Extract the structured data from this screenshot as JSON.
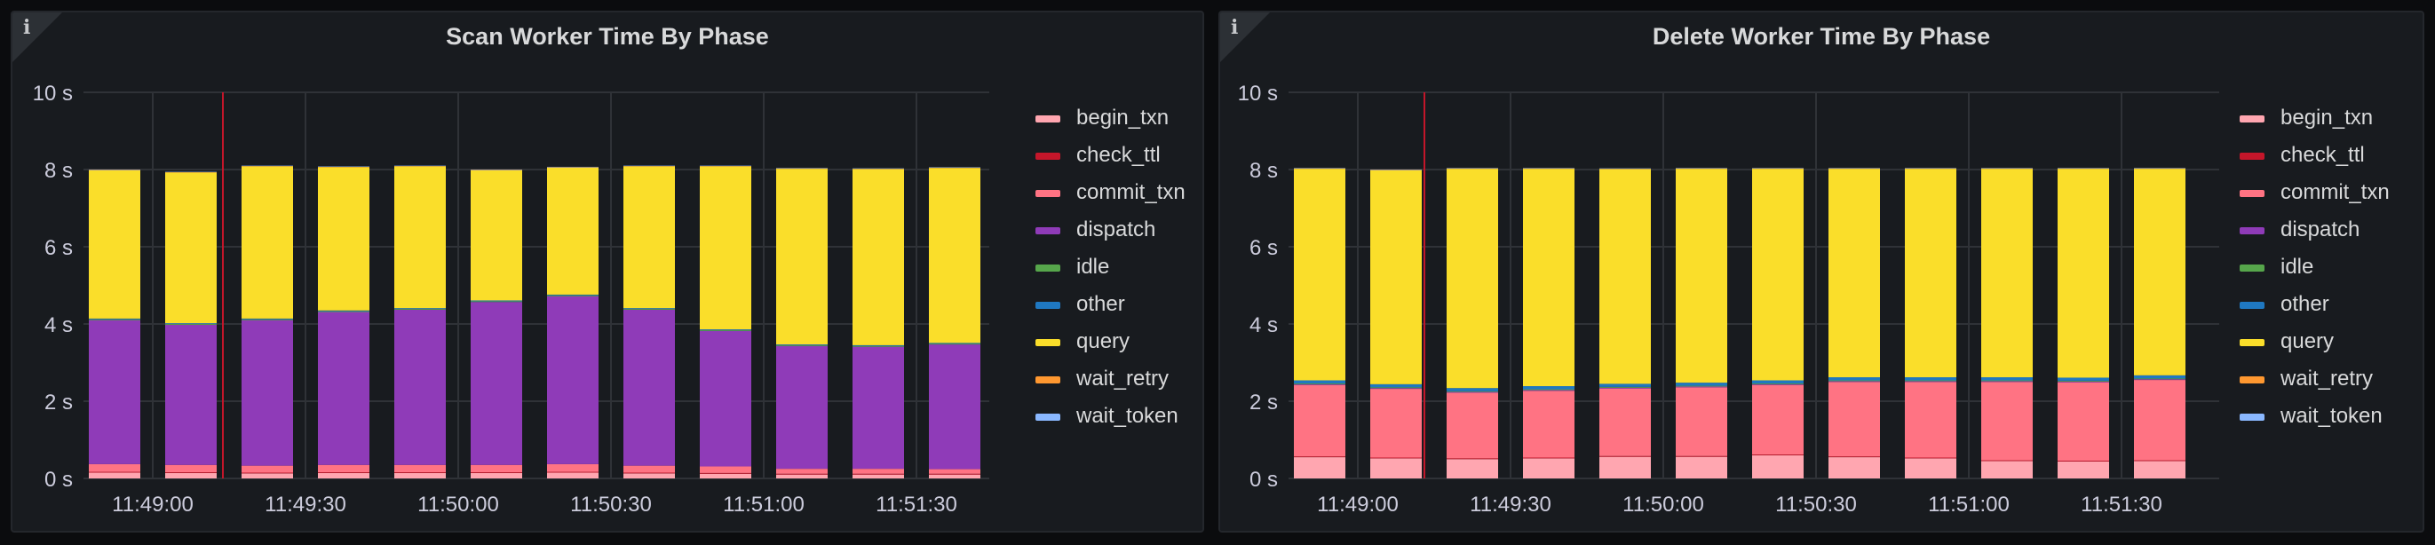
{
  "panels": [
    {
      "info_icon": "info-icon",
      "chart_data": {
        "type": "bar",
        "stacked": true,
        "title": "Scan Worker Time By Phase",
        "yunit": "s",
        "ylim": [
          0,
          10
        ],
        "yticks": [
          0,
          2,
          4,
          6,
          8,
          10
        ],
        "ytick_labels": [
          "0 s",
          "2 s",
          "4 s",
          "6 s",
          "8 s",
          "10 s"
        ],
        "xtick_labels": [
          "11:49:00",
          "11:49:30",
          "11:50:00",
          "11:50:30",
          "11:51:00",
          "11:51:30"
        ],
        "categories": [
          "11:48:45",
          "11:49:00",
          "11:49:15",
          "11:49:30",
          "11:49:45",
          "11:50:00",
          "11:50:15",
          "11:50:30",
          "11:50:45",
          "11:51:00",
          "11:51:15",
          "11:51:30"
        ],
        "grid": true,
        "marker_line": "11:49:10",
        "legend_position": "right",
        "series": [
          {
            "name": "begin_txn",
            "color": "#ffa6b0",
            "values": [
              0.15,
              0.14,
              0.13,
              0.14,
              0.14,
              0.14,
              0.15,
              0.13,
              0.12,
              0.1,
              0.1,
              0.1
            ]
          },
          {
            "name": "check_ttl",
            "color": "#c4162a",
            "values": [
              0.02,
              0.02,
              0.02,
              0.02,
              0.02,
              0.02,
              0.02,
              0.02,
              0.02,
              0.02,
              0.02,
              0.02
            ]
          },
          {
            "name": "commit_txn",
            "color": "#ff7383",
            "values": [
              0.2,
              0.19,
              0.18,
              0.19,
              0.19,
              0.19,
              0.2,
              0.18,
              0.17,
              0.13,
              0.13,
              0.12
            ]
          },
          {
            "name": "dispatch",
            "color": "#8f3bb8",
            "values": [
              3.73,
              3.63,
              3.77,
              3.96,
              4.02,
              4.22,
              4.35,
              4.04,
              3.51,
              3.18,
              3.16,
              3.23
            ]
          },
          {
            "name": "idle",
            "color": "#56a64b",
            "values": [
              0.02,
              0.02,
              0.02,
              0.02,
              0.02,
              0.02,
              0.02,
              0.02,
              0.02,
              0.02,
              0.02,
              0.02
            ]
          },
          {
            "name": "other",
            "color": "#1f78c1",
            "values": [
              0.02,
              0.02,
              0.02,
              0.02,
              0.02,
              0.02,
              0.02,
              0.02,
              0.02,
              0.02,
              0.02,
              0.02
            ]
          },
          {
            "name": "query",
            "color": "#fade2a",
            "values": [
              3.84,
              3.9,
              3.94,
              3.71,
              3.67,
              3.37,
              3.29,
              3.67,
              4.22,
              4.55,
              4.56,
              4.53
            ]
          },
          {
            "name": "wait_retry",
            "color": "#ff9830",
            "values": [
              0.01,
              0.01,
              0.01,
              0.01,
              0.01,
              0.01,
              0.01,
              0.01,
              0.01,
              0.01,
              0.01,
              0.01
            ]
          },
          {
            "name": "wait_token",
            "color": "#8ab8ff",
            "values": [
              0.01,
              0.01,
              0.01,
              0.01,
              0.01,
              0.01,
              0.01,
              0.01,
              0.01,
              0.01,
              0.01,
              0.01
            ]
          }
        ]
      }
    },
    {
      "info_icon": "info-icon",
      "chart_data": {
        "type": "bar",
        "stacked": true,
        "title": "Delete Worker Time By Phase",
        "yunit": "s",
        "ylim": [
          0,
          10
        ],
        "yticks": [
          0,
          2,
          4,
          6,
          8,
          10
        ],
        "ytick_labels": [
          "0 s",
          "2 s",
          "4 s",
          "6 s",
          "8 s",
          "10 s"
        ],
        "xtick_labels": [
          "11:49:00",
          "11:49:30",
          "11:50:00",
          "11:50:30",
          "11:51:00",
          "11:51:30"
        ],
        "categories": [
          "11:48:45",
          "11:49:00",
          "11:49:15",
          "11:49:30",
          "11:49:45",
          "11:50:00",
          "11:50:15",
          "11:50:30",
          "11:50:45",
          "11:51:00",
          "11:51:15",
          "11:51:30"
        ],
        "grid": true,
        "marker_line": "11:49:10",
        "legend_position": "right",
        "series": [
          {
            "name": "begin_txn",
            "color": "#ffa6b0",
            "values": [
              0.55,
              0.52,
              0.5,
              0.52,
              0.56,
              0.56,
              0.6,
              0.55,
              0.52,
              0.45,
              0.44,
              0.45
            ]
          },
          {
            "name": "check_ttl",
            "color": "#c4162a",
            "values": [
              0.02,
              0.02,
              0.02,
              0.02,
              0.02,
              0.02,
              0.02,
              0.02,
              0.02,
              0.02,
              0.02,
              0.02
            ]
          },
          {
            "name": "commit_txn",
            "color": "#ff7383",
            "values": [
              1.85,
              1.78,
              1.7,
              1.73,
              1.75,
              1.78,
              1.8,
              1.93,
              1.96,
              2.03,
              2.03,
              2.08
            ]
          },
          {
            "name": "dispatch",
            "color": "#8f3bb8",
            "values": [
              0.02,
              0.02,
              0.02,
              0.02,
              0.02,
              0.02,
              0.02,
              0.02,
              0.02,
              0.02,
              0.02,
              0.02
            ]
          },
          {
            "name": "idle",
            "color": "#56a64b",
            "values": [
              0.02,
              0.02,
              0.02,
              0.02,
              0.02,
              0.02,
              0.02,
              0.02,
              0.02,
              0.02,
              0.02,
              0.02
            ]
          },
          {
            "name": "other",
            "color": "#1f78c1",
            "values": [
              0.08,
              0.08,
              0.08,
              0.08,
              0.08,
              0.08,
              0.08,
              0.08,
              0.08,
              0.08,
              0.08,
              0.08
            ]
          },
          {
            "name": "query",
            "color": "#fade2a",
            "values": [
              5.48,
              5.54,
              5.68,
              5.63,
              5.56,
              5.54,
              5.48,
              5.4,
              5.4,
              5.4,
              5.41,
              5.35
            ]
          },
          {
            "name": "wait_retry",
            "color": "#ff9830",
            "values": [
              0.01,
              0.01,
              0.01,
              0.01,
              0.01,
              0.01,
              0.01,
              0.01,
              0.01,
              0.01,
              0.01,
              0.01
            ]
          },
          {
            "name": "wait_token",
            "color": "#8ab8ff",
            "values": [
              0.01,
              0.01,
              0.01,
              0.01,
              0.01,
              0.01,
              0.01,
              0.01,
              0.01,
              0.01,
              0.01,
              0.01
            ]
          }
        ]
      }
    }
  ]
}
